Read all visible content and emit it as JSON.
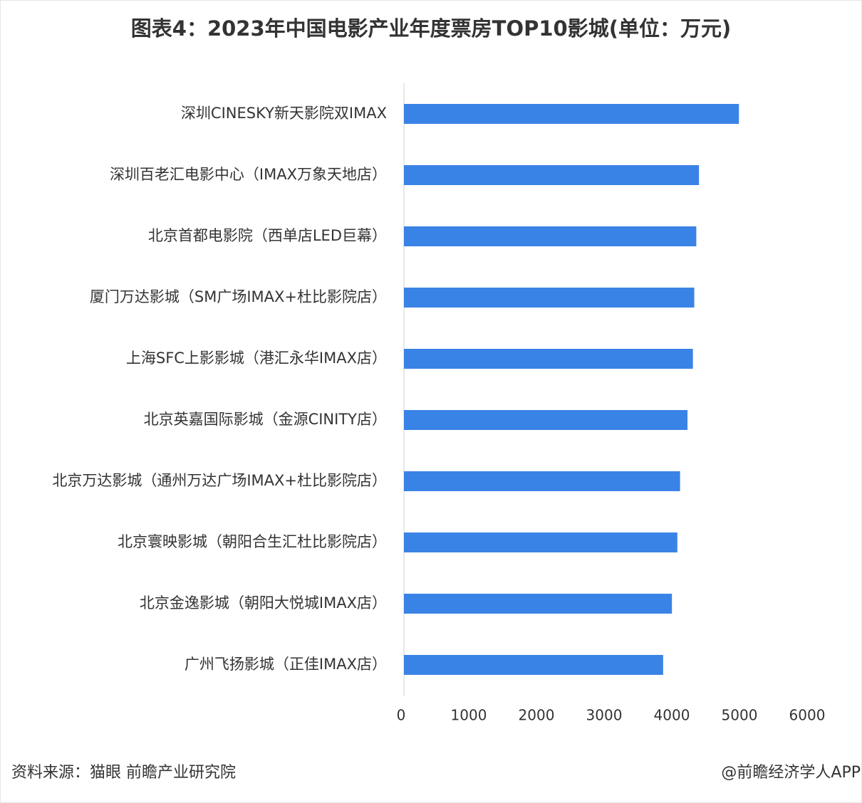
{
  "chart_data": {
    "type": "bar",
    "orientation": "horizontal",
    "title": "图表4：2023年中国电影产业年度票房TOP10影城(单位：万元)",
    "categories": [
      "深圳CINESKY新天影院双IMAX",
      "深圳百老汇电影中心（IMAX万象天地店）",
      "北京首都电影院（西单店LED巨幕）",
      "厦门万达影城（SM广场IMAX+杜比影院店）",
      "上海SFC上影影城（港汇永华IMAX店）",
      "北京英嘉国际影城（金源CINITY店）",
      "北京万达影城（通州万达广场IMAX+杜比影院店）",
      "北京寰映影城（朝阳合生汇杜比影院店）",
      "北京金逸影城（朝阳大悦城IMAX店）",
      "广州飞扬影城（正佳IMAX店）"
    ],
    "values": [
      4950,
      4360,
      4320,
      4290,
      4270,
      4190,
      4080,
      4040,
      3960,
      3830
    ],
    "color": "#3a83e6",
    "xlim": [
      0,
      6000
    ],
    "xticks": [
      0,
      1000,
      2000,
      3000,
      4000,
      5000,
      6000
    ],
    "grid": false
  },
  "source": "资料来源：猫眼 前瞻产业研究院",
  "credit": "@前瞻经济学人APP"
}
